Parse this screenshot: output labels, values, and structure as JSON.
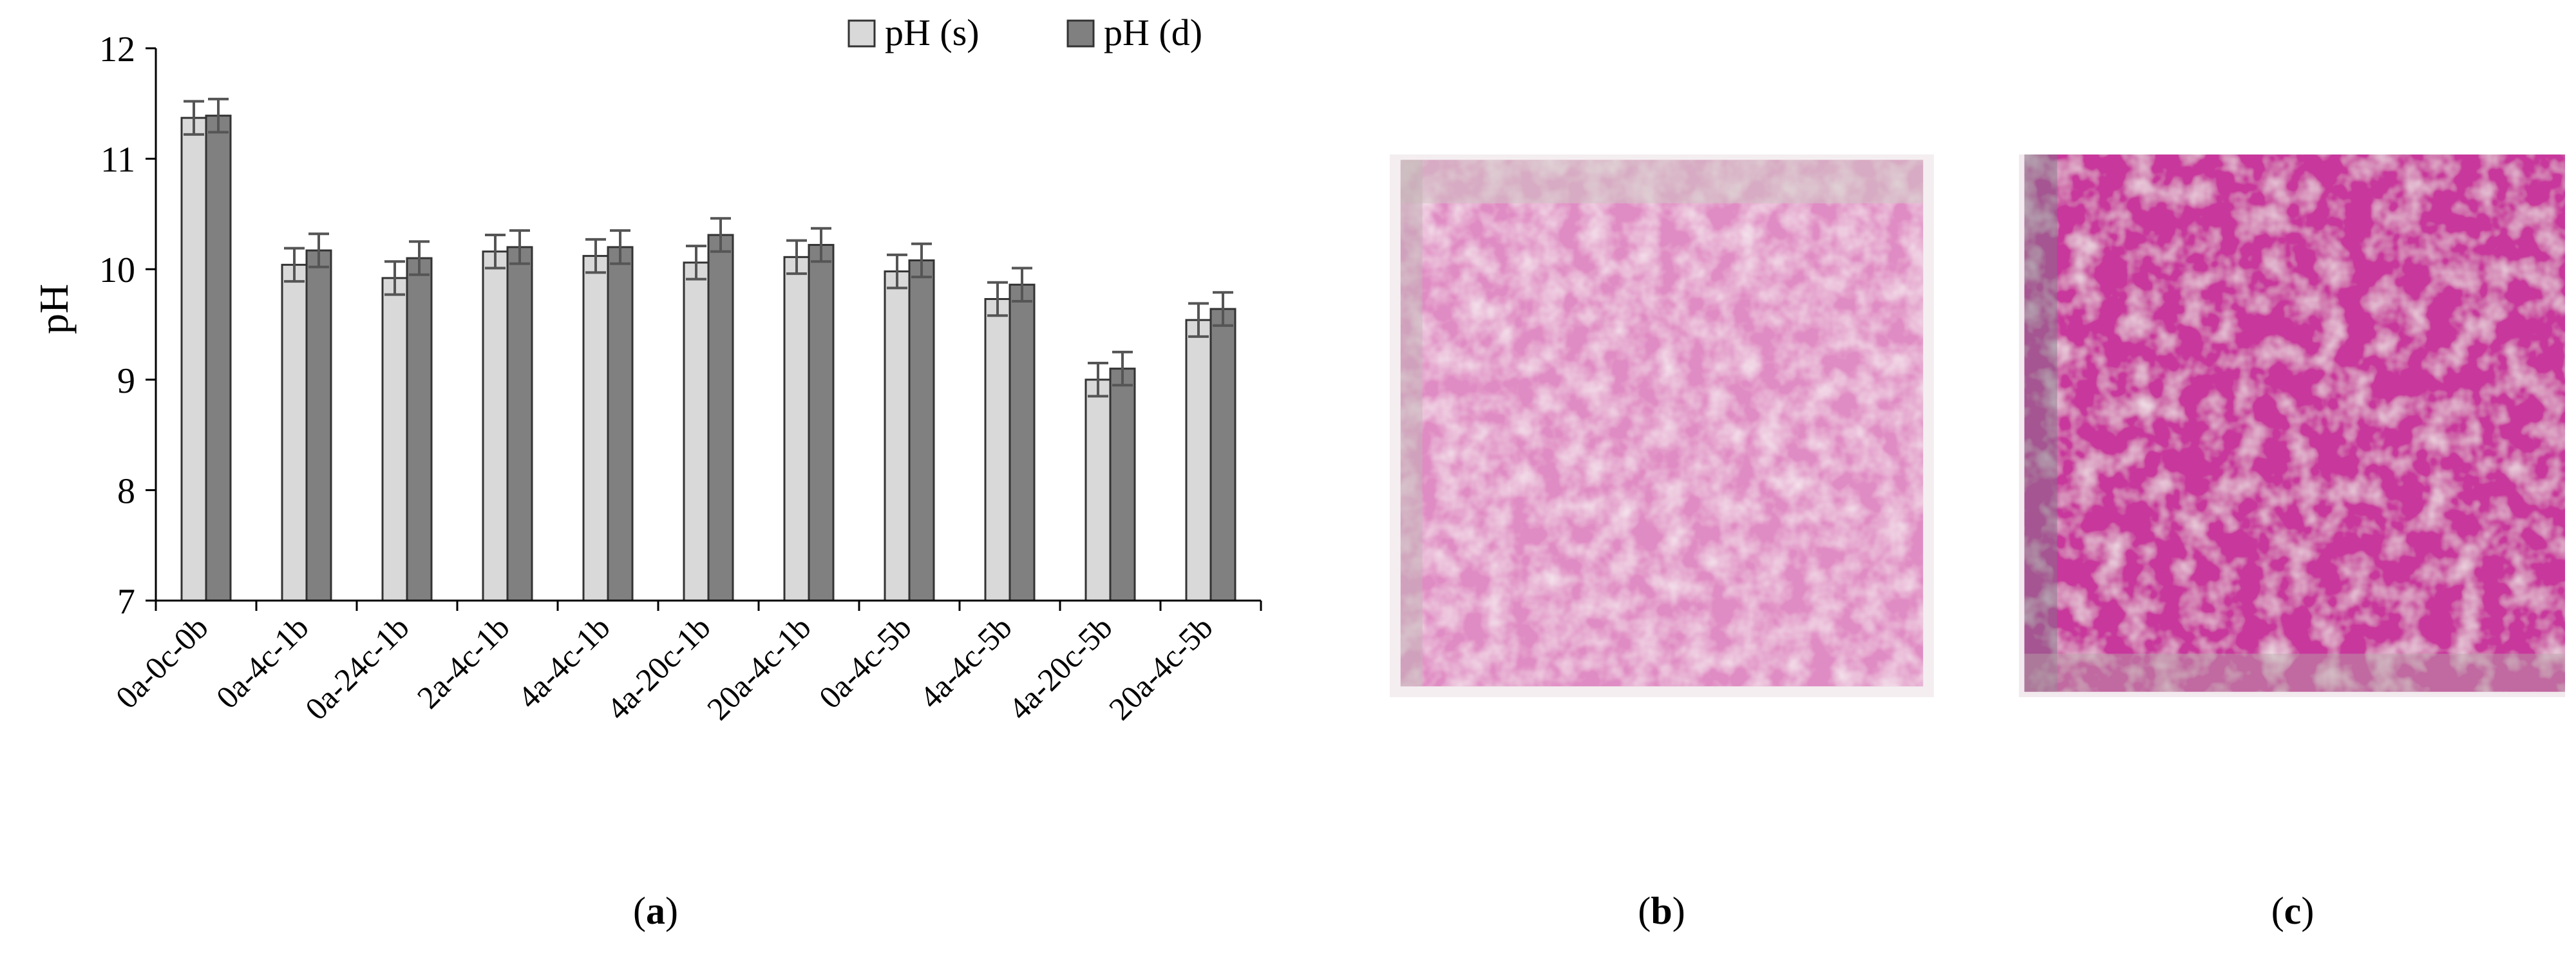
{
  "chart_data": {
    "type": "bar",
    "ylabel": "pH",
    "ylim": [
      7,
      12
    ],
    "yticks": [
      7,
      8,
      9,
      10,
      11,
      12
    ],
    "grid": false,
    "legend_position": "top-right",
    "categories": [
      "0a-0c-0b",
      "0a-4c-1b",
      "0a-24c-1b",
      "2a-4c-1b",
      "4a-4c-1b",
      "4a-20c-1b",
      "20a-4c-1b",
      "0a-4c-5b",
      "4a-4c-5b",
      "4a-20c-5b",
      "20a-4c-5b"
    ],
    "series": [
      {
        "name": "pH (s)",
        "color": "#d9d9d9",
        "values": [
          11.37,
          10.04,
          9.92,
          10.16,
          10.12,
          10.06,
          10.11,
          9.98,
          9.73,
          9.0,
          9.54
        ],
        "errors": [
          0.15,
          0.15,
          0.15,
          0.15,
          0.15,
          0.15,
          0.15,
          0.15,
          0.15,
          0.15,
          0.15
        ]
      },
      {
        "name": "pH (d)",
        "color": "#808080",
        "values": [
          11.39,
          10.17,
          10.1,
          10.2,
          10.2,
          10.31,
          10.22,
          10.08,
          9.86,
          9.1,
          9.64
        ],
        "errors": [
          0.15,
          0.15,
          0.15,
          0.15,
          0.15,
          0.15,
          0.15,
          0.15,
          0.15,
          0.15,
          0.15
        ]
      }
    ]
  },
  "panels": {
    "a": {
      "open": "(",
      "letter": "a",
      "close": ")"
    },
    "b": {
      "open": "(",
      "letter": "b",
      "close": ")"
    },
    "c": {
      "open": "(",
      "letter": "c",
      "close": ")"
    }
  }
}
